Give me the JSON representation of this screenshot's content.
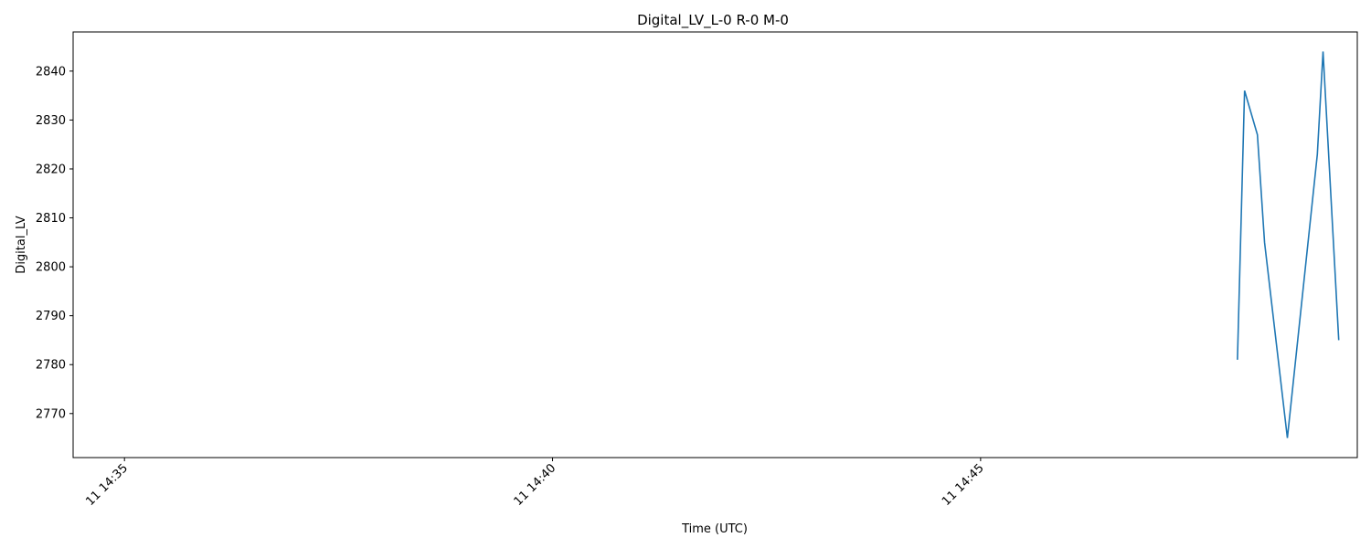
{
  "chart_data": {
    "type": "line",
    "title": "Digital_LV_L-0 R-0 M-0",
    "xlabel": "Time (UTC)",
    "ylabel": "Digital_LV",
    "xlim": [
      "11 14:34:24",
      "11 14:49:24"
    ],
    "ylim": [
      2761,
      2848
    ],
    "x_ticks": [
      "11 14:35",
      "11 14:40",
      "11 14:45"
    ],
    "y_ticks": [
      2770,
      2780,
      2790,
      2800,
      2810,
      2820,
      2830,
      2840
    ],
    "grid": false,
    "color": "#1f77b4",
    "series": [
      {
        "x": [
          "11 14:48:00",
          "11 14:48:05",
          "11 14:48:14",
          "11 14:48:19",
          "11 14:48:23",
          "11 14:48:35",
          "11 14:48:56",
          "11 14:49:00",
          "11 14:49:11"
        ],
        "y": [
          2781,
          2836,
          2827,
          2805,
          2795,
          2765,
          2823,
          2844,
          2785
        ]
      }
    ]
  }
}
